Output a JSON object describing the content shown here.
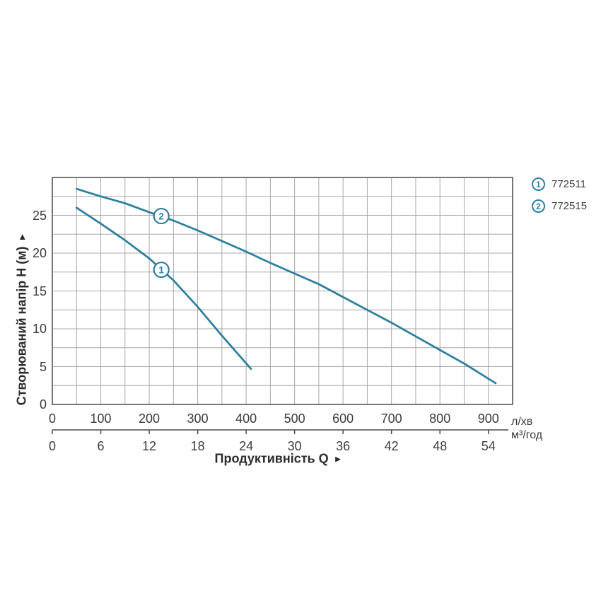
{
  "chart_data": {
    "type": "line",
    "title": "",
    "y_axis": {
      "label": "Створюваний напір H (м)",
      "arrow": "►",
      "ticks": [
        0,
        5,
        10,
        15,
        20,
        25
      ],
      "range": [
        0,
        30
      ],
      "grid_step": 2.5
    },
    "x_axis": {
      "label": "Продуктивність Q",
      "arrow": "►",
      "primary": {
        "unit": "л/хв",
        "ticks": [
          0,
          100,
          200,
          300,
          400,
          500,
          600,
          700,
          800,
          900
        ],
        "range": [
          0,
          950
        ],
        "grid_step": 50
      },
      "secondary": {
        "unit": "м³/год",
        "ticks": [
          0,
          6,
          12,
          18,
          24,
          30,
          36,
          42,
          48,
          54
        ],
        "range": [
          0,
          57
        ]
      }
    },
    "grid": true,
    "legend_position": "top-right",
    "series": [
      {
        "id": "1",
        "name": "772511",
        "color": "#2e7f9e",
        "marker": {
          "q": 225,
          "h": 17.8
        },
        "points_q_lmin_h_m": [
          [
            50,
            26.0
          ],
          [
            100,
            23.9
          ],
          [
            150,
            21.7
          ],
          [
            200,
            19.3
          ],
          [
            250,
            16.4
          ],
          [
            300,
            12.9
          ],
          [
            350,
            9.1
          ],
          [
            380,
            6.9
          ],
          [
            410,
            4.7
          ]
        ]
      },
      {
        "id": "2",
        "name": "772515",
        "color": "#2e7f9e",
        "marker": {
          "q": 225,
          "h": 24.9
        },
        "points_q_lmin_h_m": [
          [
            50,
            28.5
          ],
          [
            100,
            27.5
          ],
          [
            150,
            26.6
          ],
          [
            200,
            25.4
          ],
          [
            250,
            24.3
          ],
          [
            300,
            23.0
          ],
          [
            350,
            21.6
          ],
          [
            400,
            20.2
          ],
          [
            450,
            18.7
          ],
          [
            500,
            17.3
          ],
          [
            550,
            15.9
          ],
          [
            600,
            14.2
          ],
          [
            650,
            12.5
          ],
          [
            700,
            10.8
          ],
          [
            750,
            9.0
          ],
          [
            800,
            7.2
          ],
          [
            850,
            5.4
          ],
          [
            915,
            2.8
          ]
        ]
      }
    ]
  },
  "colors": {
    "curve": "#2e7f9e",
    "grid_line": "#a8a8a8",
    "plot_border": "#767676",
    "secondary_axis_line": "#4a4a4a",
    "tick_text": "#3d3d3d",
    "title_text": "#2b2b2b",
    "background": "#ffffff"
  }
}
